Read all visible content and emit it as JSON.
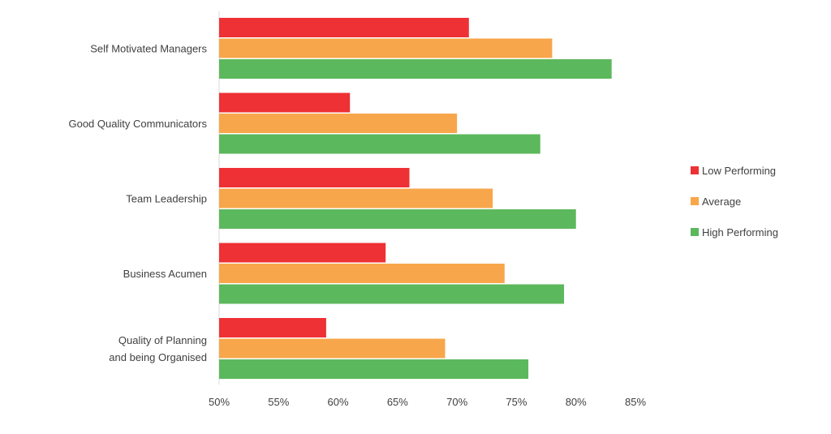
{
  "chart_data": {
    "type": "bar",
    "orientation": "horizontal",
    "categories": [
      [
        "Self Motivated Managers"
      ],
      [
        "Good Quality Communicators"
      ],
      [
        "Team Leadership"
      ],
      [
        "Business Acumen"
      ],
      [
        "Quality of Planning",
        "and being Organised"
      ]
    ],
    "series": [
      {
        "name": "Low Performing",
        "color": "#ee3135",
        "values": [
          71,
          61,
          66,
          64,
          59
        ]
      },
      {
        "name": "Average",
        "color": "#f8a64b",
        "values": [
          78,
          70,
          73,
          74,
          69
        ]
      },
      {
        "name": "High Performing",
        "color": "#5cb85c",
        "values": [
          83,
          77,
          80,
          79,
          76
        ]
      }
    ],
    "xlim": [
      50,
      85
    ],
    "xticks": [
      "50%",
      "55%",
      "60%",
      "65%",
      "70%",
      "75%",
      "80%",
      "85%"
    ],
    "xtick_values": [
      50,
      55,
      60,
      65,
      70,
      75,
      80,
      85
    ],
    "legend_position": "right",
    "grid": false
  }
}
